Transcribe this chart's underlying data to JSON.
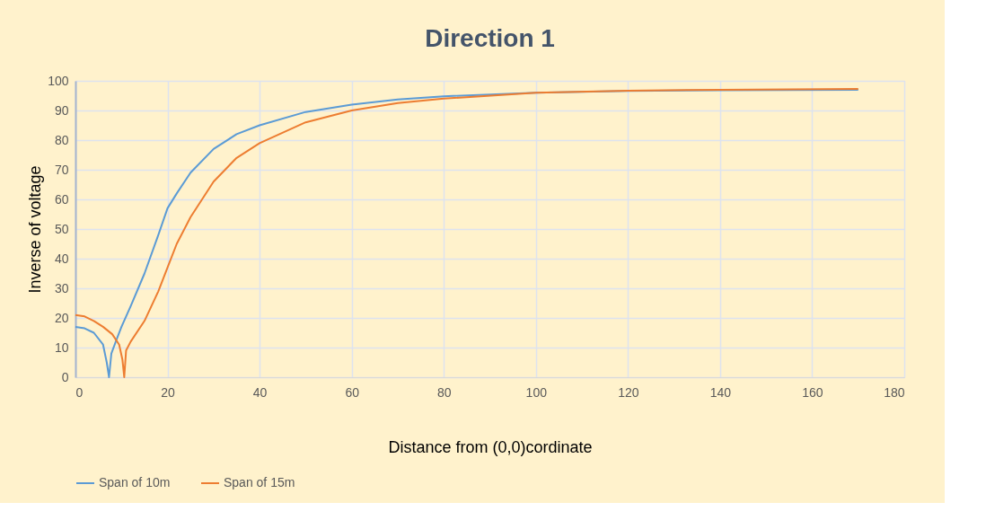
{
  "chart_data": {
    "type": "line",
    "title": "Direction 1",
    "xlabel": "Distance from (0,0)cordinate",
    "ylabel": "Inverse of voltage",
    "xlim": [
      0,
      180
    ],
    "xticks": [
      0,
      20,
      40,
      60,
      80,
      100,
      120,
      140,
      160,
      180
    ],
    "ylim": [
      0,
      100
    ],
    "yticks": [
      0,
      10,
      20,
      30,
      40,
      50,
      60,
      70,
      80,
      90,
      100
    ],
    "grid": true,
    "legend": "bottom",
    "marker": "none",
    "line_style": "solid",
    "series": [
      {
        "name": "Span of 10m",
        "color": "#5b9bd5",
        "x": [
          0,
          2,
          4,
          6,
          6.8,
          7.3,
          7.8,
          9,
          10,
          12,
          15,
          18,
          20,
          22,
          25,
          30,
          35,
          40,
          50,
          60,
          70,
          80,
          100,
          120,
          140,
          170
        ],
        "values": [
          17,
          16.5,
          15,
          11,
          5,
          0,
          8,
          13,
          17,
          24,
          35,
          48,
          57,
          62,
          69,
          77,
          82,
          85,
          89.5,
          92,
          93.7,
          94.8,
          96,
          96.6,
          96.8,
          97
        ]
      },
      {
        "name": "Span of 15m",
        "color": "#ed7d31",
        "x": [
          0,
          2,
          4,
          6,
          8,
          9.5,
          10.2,
          10.6,
          11,
          12,
          15,
          18,
          20,
          22,
          25,
          30,
          35,
          40,
          50,
          60,
          70,
          80,
          100,
          120,
          140,
          170
        ],
        "values": [
          21,
          20.5,
          19,
          17,
          14.5,
          11,
          6,
          0,
          9,
          12,
          19,
          29,
          37,
          45,
          54,
          66,
          74,
          79,
          86,
          90,
          92.5,
          94,
          96,
          96.7,
          97,
          97.3
        ]
      }
    ]
  }
}
